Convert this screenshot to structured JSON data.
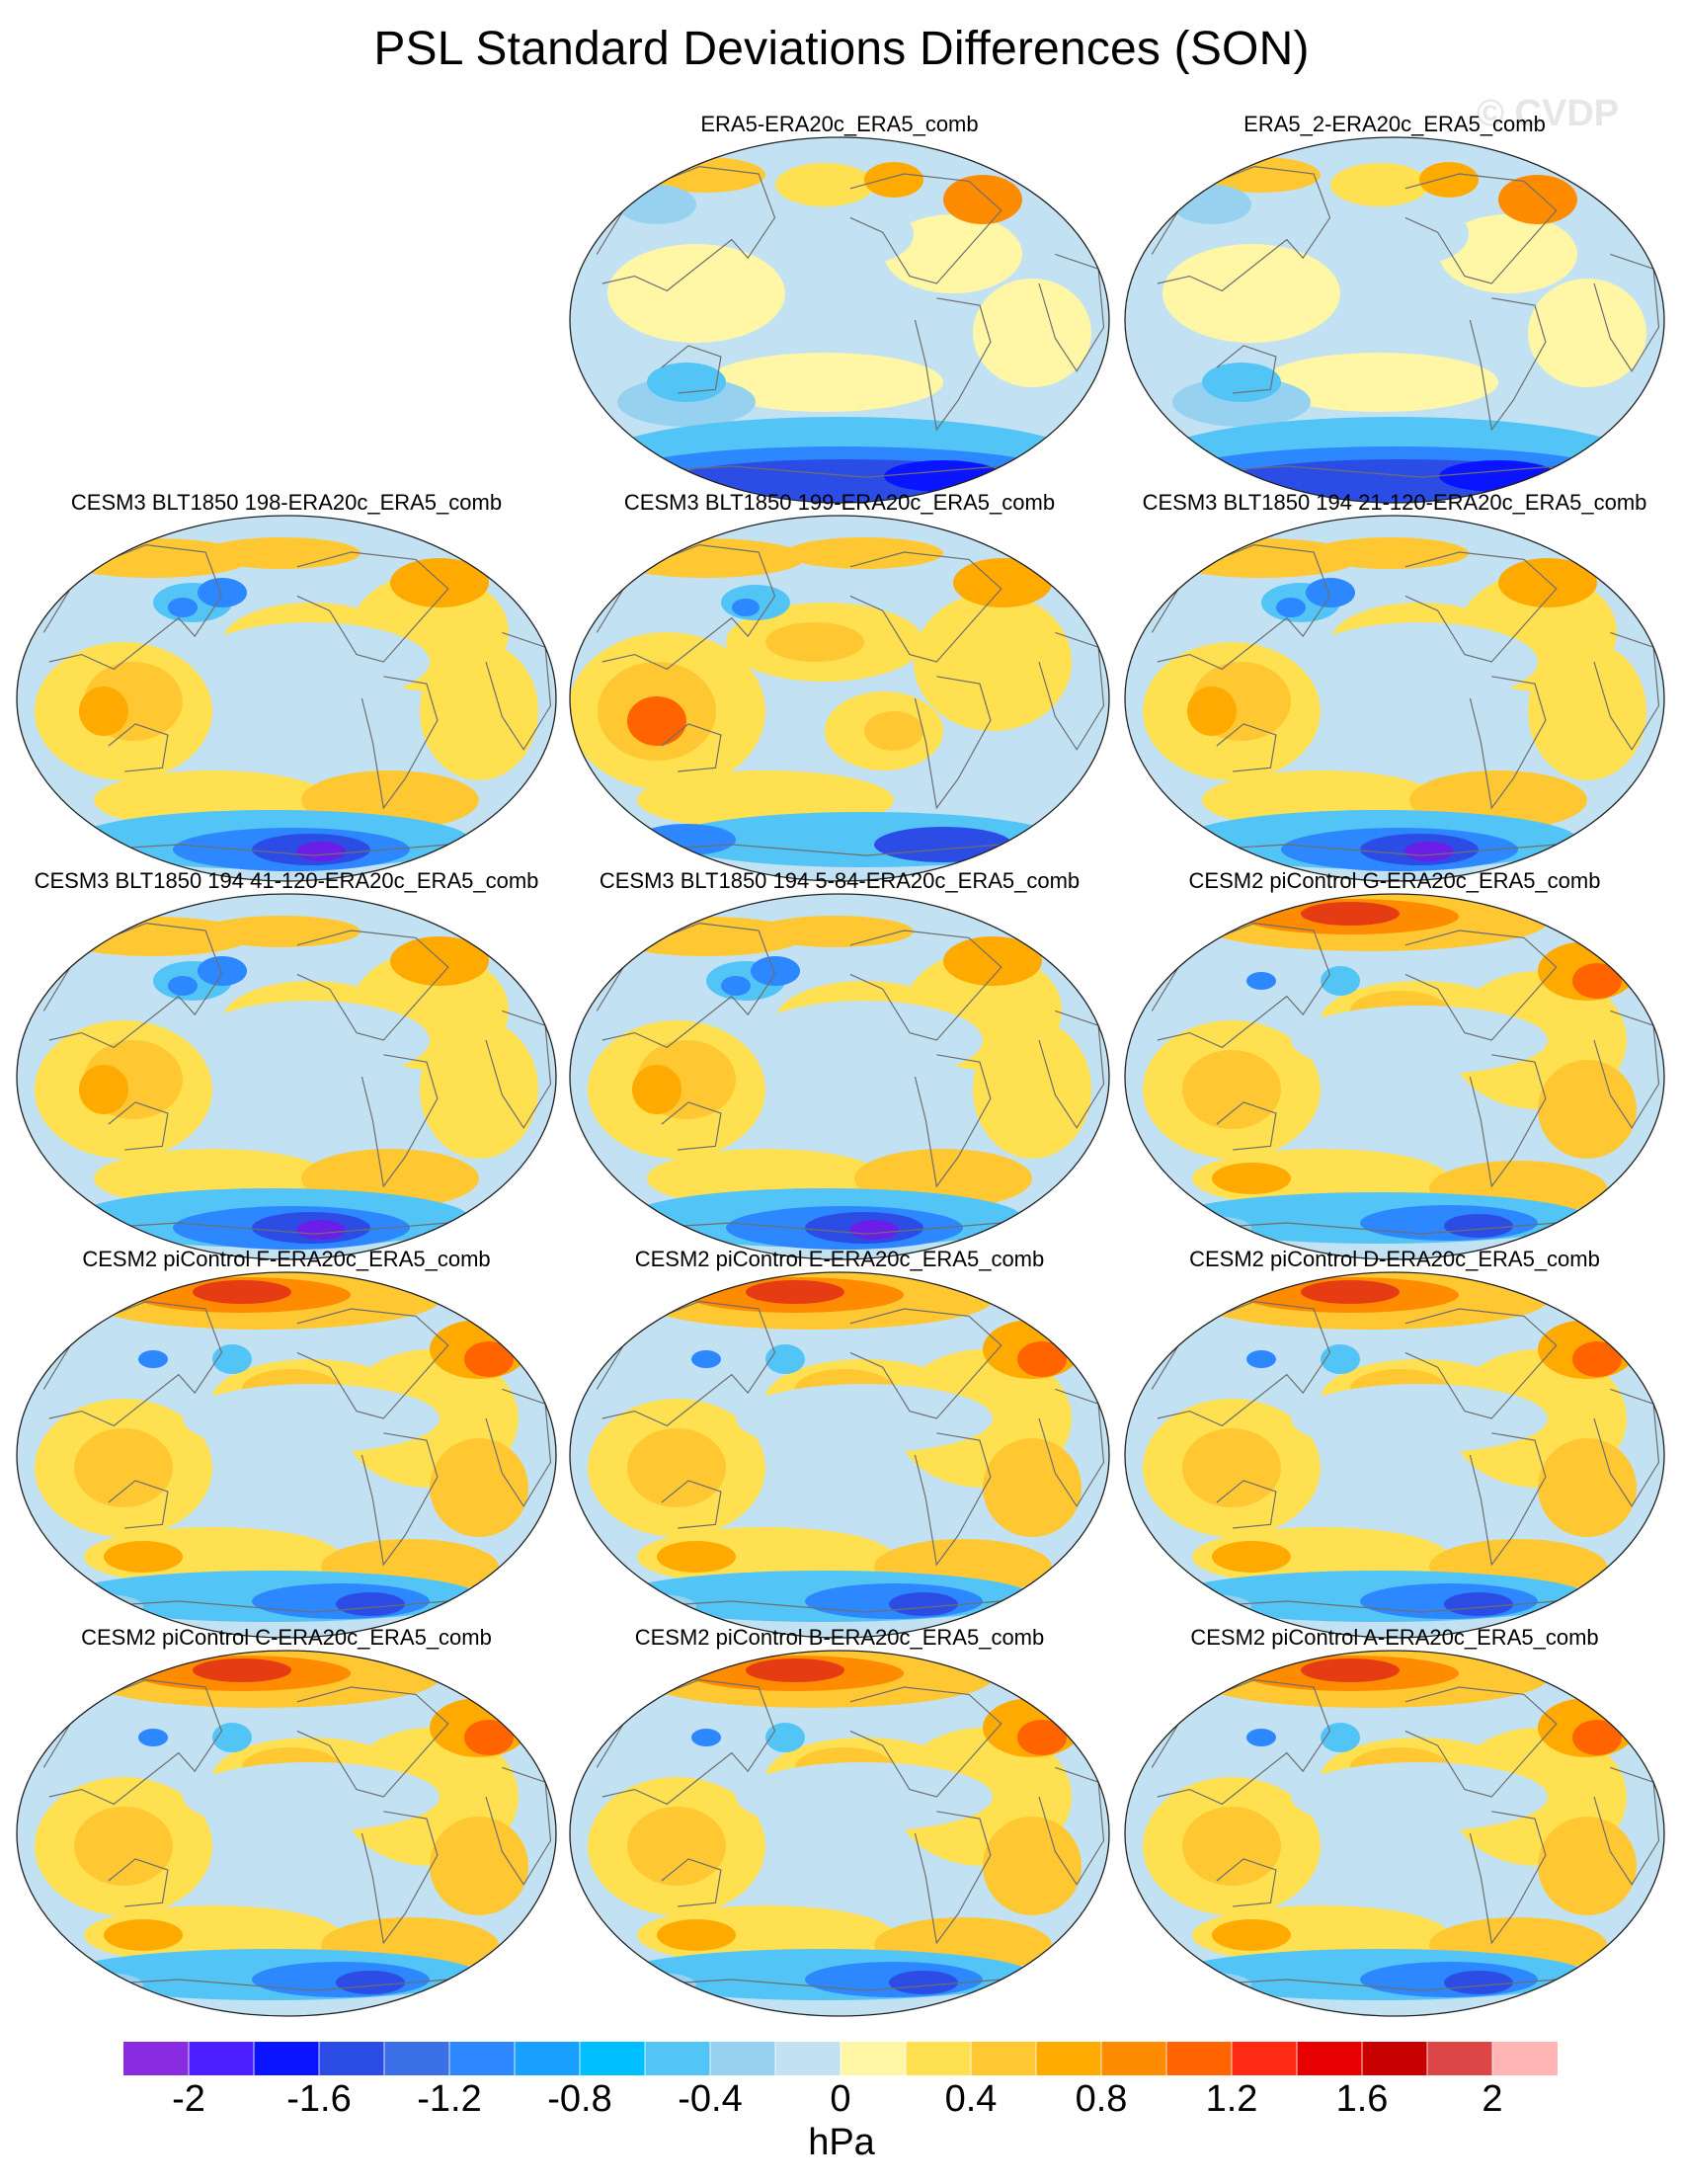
{
  "title": "PSL Standard Deviations Differences (SON)",
  "watermark": "© CVDP",
  "panels": [
    {
      "title": "ERA5-ERA20c_ERA5_comb",
      "variant": 0
    },
    {
      "title": "ERA5_2-ERA20c_ERA5_comb",
      "variant": 0
    },
    {
      "title": "CESM3 BLT1850 198-ERA20c_ERA5_comb",
      "variant": 1
    },
    {
      "title": "CESM3 BLT1850 199-ERA20c_ERA5_comb",
      "variant": 2
    },
    {
      "title": "CESM3 BLT1850 194 21-120-ERA20c_ERA5_comb",
      "variant": 1
    },
    {
      "title": "CESM3 BLT1850 194 41-120-ERA20c_ERA5_comb",
      "variant": 1
    },
    {
      "title": "CESM3 BLT1850 194 5-84-ERA20c_ERA5_comb",
      "variant": 1
    },
    {
      "title": "CESM2 piControl G-ERA20c_ERA5_comb",
      "variant": 3
    },
    {
      "title": "CESM2 piControl F-ERA20c_ERA5_comb",
      "variant": 3
    },
    {
      "title": "CESM2 piControl E-ERA20c_ERA5_comb",
      "variant": 3
    },
    {
      "title": "CESM2 piControl D-ERA20c_ERA5_comb",
      "variant": 3
    },
    {
      "title": "CESM2 piControl C-ERA20c_ERA5_comb",
      "variant": 3
    },
    {
      "title": "CESM2 piControl B-ERA20c_ERA5_comb",
      "variant": 3
    },
    {
      "title": "CESM2 piControl A-ERA20c_ERA5_comb",
      "variant": 3
    }
  ],
  "colorbar": {
    "colors": [
      "#8a2be2",
      "#4b1eff",
      "#0a14ff",
      "#2b4de6",
      "#3a6fe8",
      "#2d87ff",
      "#18a0ff",
      "#00bfff",
      "#53c4f6",
      "#96d1f0",
      "#c2e2f4",
      "#fff7a6",
      "#ffe050",
      "#ffc832",
      "#ffaa00",
      "#ff8c00",
      "#ff6400",
      "#ff2a14",
      "#e60000",
      "#c80000",
      "#dc4646",
      "#ffb4b4"
    ],
    "tick_labels": [
      "-2",
      "-1.6",
      "-1.2",
      "-0.8",
      "-0.4",
      "0",
      "0.4",
      "0.8",
      "1.2",
      "1.6",
      "2"
    ],
    "unit": "hPa"
  }
}
